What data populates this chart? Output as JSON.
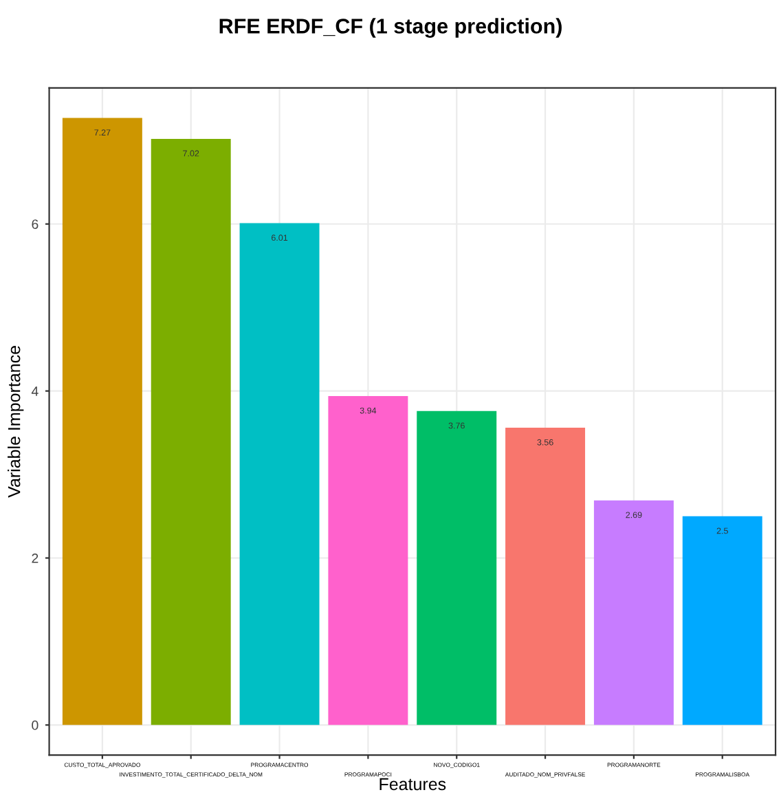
{
  "chart_data": {
    "type": "bar",
    "title": "RFE ERDF_CF (1 stage prediction)",
    "xlabel": "Features",
    "ylabel": "Variable Importance",
    "categories": [
      "CUSTO_TOTAL_APROVADO",
      "INVESTIMENTO_TOTAL_CERTIFICADO_DELTA_NOM",
      "PROGRAMACENTRO",
      "PROGRAMAPOCI",
      "NOVO_CODIGO1",
      "AUDITADO_NOM_PRIVFALSE",
      "PROGRAMANORTE",
      "PROGRAMALISBOA"
    ],
    "values": [
      7.27,
      7.02,
      6.01,
      3.94,
      3.76,
      3.56,
      2.69,
      2.5
    ],
    "colors": [
      "#cd9600",
      "#7cae00",
      "#00bfc4",
      "#ff61cc",
      "#00be67",
      "#f8766d",
      "#c77cff",
      "#00a9ff"
    ],
    "ylim": [
      -0.36,
      7.63
    ],
    "yticks": [
      0,
      2,
      4,
      6
    ],
    "grid": true,
    "data_labels": true
  }
}
